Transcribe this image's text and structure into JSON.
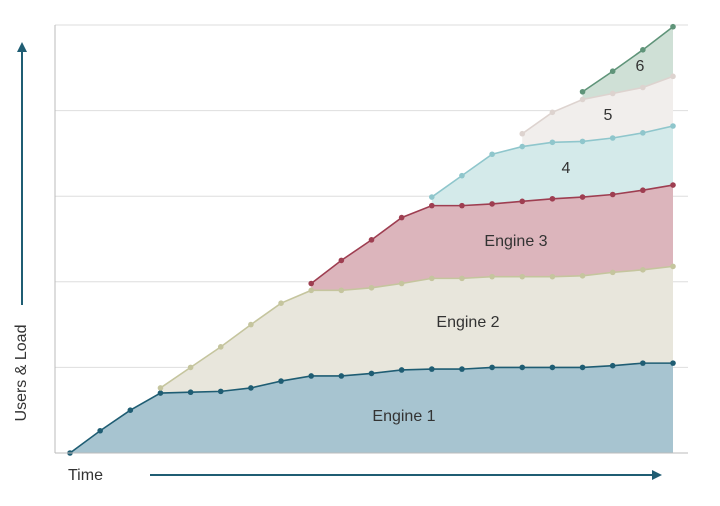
{
  "chart_data": {
    "type": "stacked-area",
    "y_label": "Users & Load",
    "x_label": "Time",
    "x": [
      0,
      1,
      2,
      3,
      4,
      5,
      6,
      7,
      8,
      9,
      10,
      11,
      12,
      13,
      14,
      15,
      16,
      17,
      18,
      19,
      20
    ],
    "xlim": [
      0,
      20
    ],
    "ylim": [
      0,
      5
    ],
    "gridlines": [
      1,
      2,
      3,
      4,
      5
    ],
    "series": [
      {
        "name": "Engine 1",
        "color": "#1f5d73",
        "fill": "#a7c4d0",
        "values": [
          0,
          0.26,
          0.5,
          0.7,
          0.71,
          0.72,
          0.76,
          0.84,
          0.9,
          0.9,
          0.93,
          0.97,
          0.98,
          0.98,
          1.0,
          1.0,
          1.0,
          1.0,
          1.02,
          1.05,
          1.05
        ]
      },
      {
        "name": "Engine 2",
        "color": "#c5c59e",
        "fill": "#e8e6dc",
        "values": [
          null,
          null,
          null,
          0.06,
          0.29,
          0.52,
          0.74,
          0.91,
          1.0,
          1.0,
          1.0,
          1.01,
          1.06,
          1.06,
          1.06,
          1.06,
          1.06,
          1.07,
          1.09,
          1.09,
          1.13
        ]
      },
      {
        "name": "Engine 3",
        "color": "#9e3e51",
        "fill": "#dcb5bc",
        "values": [
          null,
          null,
          null,
          null,
          null,
          null,
          null,
          null,
          0.08,
          0.35,
          0.56,
          0.77,
          0.85,
          0.85,
          0.85,
          0.88,
          0.91,
          0.92,
          0.91,
          0.93,
          0.95
        ]
      },
      {
        "name": "4",
        "color": "#8fc6cc",
        "fill": "#d4eaea",
        "values": [
          null,
          null,
          null,
          null,
          null,
          null,
          null,
          null,
          null,
          null,
          null,
          null,
          0.1,
          0.35,
          0.58,
          0.64,
          0.66,
          0.65,
          0.66,
          0.67,
          0.69
        ]
      },
      {
        "name": "5",
        "color": "#ddd3cf",
        "fill": "#f1eeec",
        "values": [
          null,
          null,
          null,
          null,
          null,
          null,
          null,
          null,
          null,
          null,
          null,
          null,
          null,
          null,
          null,
          0.15,
          0.35,
          0.49,
          0.52,
          0.53,
          0.58
        ]
      },
      {
        "name": "6",
        "color": "#5f9479",
        "fill": "#cfe0d6",
        "values": [
          null,
          null,
          null,
          null,
          null,
          null,
          null,
          null,
          null,
          null,
          null,
          null,
          null,
          null,
          null,
          null,
          null,
          0.09,
          0.26,
          0.44,
          0.58
        ]
      }
    ]
  }
}
